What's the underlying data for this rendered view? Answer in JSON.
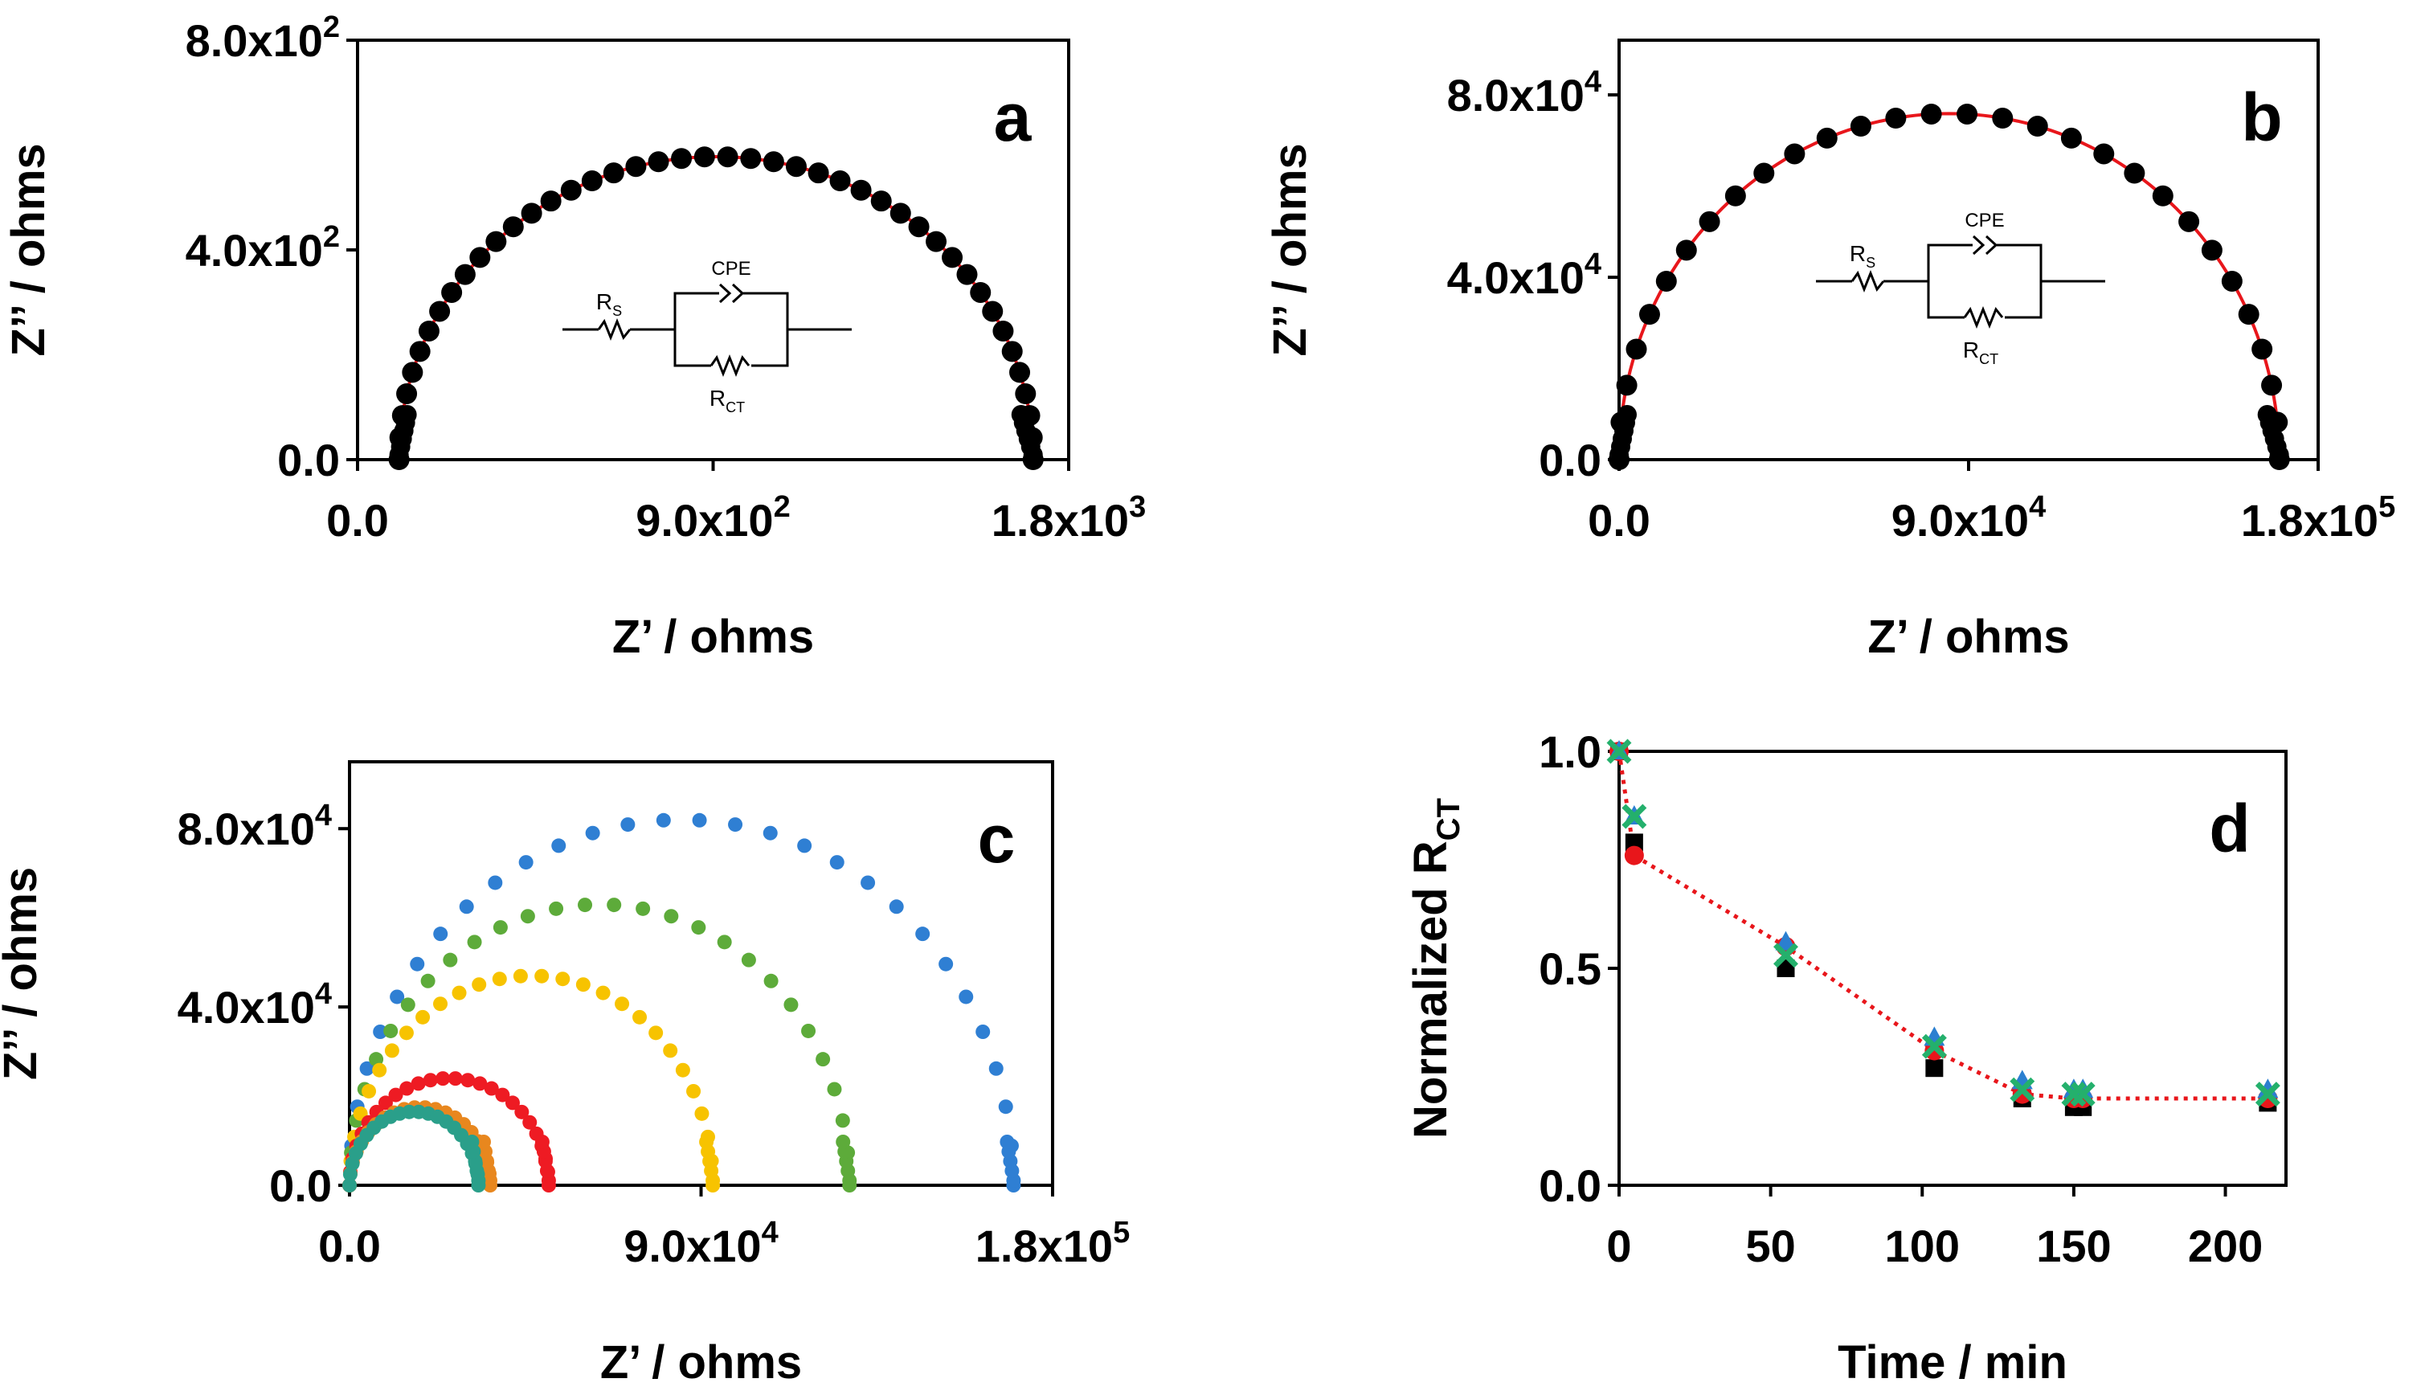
{
  "colors": {
    "fit": "#e8161b",
    "points": "#000000",
    "blue": "#2f7fd3",
    "green": "#5dab3a",
    "yellow": "#f7c300",
    "red": "#ee1b23",
    "orange": "#e8871e",
    "teal": "#2a9f8a",
    "d_black": "#000000",
    "d_red": "#e8161b",
    "d_blue": "#2b7fd0",
    "d_green": "#24b06c"
  },
  "chart_data": [
    {
      "id": "a",
      "type": "scatter",
      "panel_label": "a",
      "xlabel": "Z’ / ohms",
      "ylabel": "Z’’ / ohms",
      "xlim": [
        0,
        1800
      ],
      "ylim": [
        0,
        800
      ],
      "xticks": [
        0,
        900,
        1800
      ],
      "yticks": [
        0,
        400,
        800
      ],
      "xtick_labels": [
        {
          "mant": "0.0",
          "exp": ""
        },
        {
          "mant": "9.0x10",
          "exp": "2"
        },
        {
          "mant": "1.8x10",
          "exp": "3"
        }
      ],
      "ytick_labels": [
        {
          "mant": "0.0",
          "exp": ""
        },
        {
          "mant": "4.0x10",
          "exp": "2"
        },
        {
          "mant": "8.0x10",
          "exp": "2"
        }
      ],
      "fit_arc": {
        "x_start": 105,
        "x_end": 1710,
        "depress": 0.72
      },
      "points_count": 44,
      "circuit": {
        "rs": "R",
        "rs_sub": "S",
        "cpe": "CPE",
        "rct": "R",
        "rct_sub": "CT"
      }
    },
    {
      "id": "b",
      "type": "scatter",
      "panel_label": "b",
      "xlabel": "Z’ / ohms",
      "ylabel": "Z’’ / ohms",
      "xlim": [
        0,
        180000
      ],
      "ylim": [
        0,
        92000
      ],
      "xticks": [
        0,
        90000,
        180000
      ],
      "yticks": [
        0,
        40000,
        80000
      ],
      "xtick_labels": [
        {
          "mant": "0.0",
          "exp": ""
        },
        {
          "mant": "9.0x10",
          "exp": "4"
        },
        {
          "mant": "1.8x10",
          "exp": "5"
        }
      ],
      "ytick_labels": [
        {
          "mant": "0.0",
          "exp": ""
        },
        {
          "mant": "4.0x10",
          "exp": "4"
        },
        {
          "mant": "8.0x10",
          "exp": "4"
        }
      ],
      "fit_arc": {
        "x_start": 0,
        "x_end": 170000,
        "depress": 0.95
      },
      "points_count": 30,
      "circuit": {
        "rs": "R",
        "rs_sub": "S",
        "cpe": "CPE",
        "rct": "R",
        "rct_sub": "CT"
      }
    },
    {
      "id": "c",
      "type": "scatter",
      "panel_label": "c",
      "xlabel": "Z’ / ohms",
      "ylabel": "Z’’ / ohms",
      "xlim": [
        0,
        180000
      ],
      "ylim": [
        0,
        95000
      ],
      "xticks": [
        0,
        90000,
        180000
      ],
      "yticks": [
        0,
        40000,
        80000
      ],
      "xtick_labels": [
        {
          "mant": "0.0",
          "exp": ""
        },
        {
          "mant": "9.0x10",
          "exp": "4"
        },
        {
          "mant": "1.8x10",
          "exp": "5"
        }
      ],
      "ytick_labels": [
        {
          "mant": "0.0",
          "exp": ""
        },
        {
          "mant": "4.0x10",
          "exp": "4"
        },
        {
          "mant": "8.0x10",
          "exp": "4"
        }
      ],
      "series": [
        {
          "color_key": "blue",
          "x_end": 170000,
          "peak": 82000,
          "count": 30
        },
        {
          "color_key": "green",
          "x_end": 128000,
          "peak": 63000,
          "count": 28
        },
        {
          "color_key": "yellow",
          "x_end": 93000,
          "peak": 47000,
          "count": 28
        },
        {
          "color_key": "red",
          "x_end": 51000,
          "peak": 24000,
          "count": 26
        },
        {
          "color_key": "orange",
          "x_end": 36000,
          "peak": 17500,
          "count": 22
        },
        {
          "color_key": "teal",
          "x_end": 33000,
          "peak": 16500,
          "count": 22
        }
      ]
    },
    {
      "id": "d",
      "type": "scatter",
      "panel_label": "d",
      "xlabel": "Time / min",
      "ylabel": "Normalized R",
      "ylabel_sub": "CT",
      "xlim": [
        0,
        220
      ],
      "ylim": [
        0,
        1.0
      ],
      "xticks": [
        0,
        50,
        100,
        150,
        200
      ],
      "yticks": [
        0.0,
        0.5,
        1.0
      ],
      "xtick_labels": [
        "0",
        "50",
        "100",
        "150",
        "200"
      ],
      "ytick_labels": [
        "0.0",
        "0.5",
        "1.0"
      ],
      "trend": {
        "x": [
          0,
          5,
          55,
          104,
          133,
          150,
          153,
          214
        ],
        "y": [
          1.0,
          0.76,
          0.55,
          0.31,
          0.21,
          0.2,
          0.2,
          0.2
        ]
      },
      "series": [
        {
          "color_key": "d_black",
          "marker": "square",
          "x": [
            0,
            5,
            55,
            104,
            133,
            150,
            153,
            214
          ],
          "y": [
            1.0,
            0.79,
            0.5,
            0.27,
            0.2,
            0.18,
            0.18,
            0.19
          ]
        },
        {
          "color_key": "d_red",
          "marker": "circle",
          "x": [
            0,
            5,
            55,
            104,
            133,
            150,
            153,
            214
          ],
          "y": [
            1.0,
            0.76,
            0.55,
            0.31,
            0.21,
            0.2,
            0.2,
            0.2
          ]
        },
        {
          "color_key": "d_blue",
          "marker": "triangle",
          "x": [
            0,
            5,
            55,
            104,
            133,
            150,
            153,
            214
          ],
          "y": [
            1.0,
            0.85,
            0.56,
            0.34,
            0.24,
            0.22,
            0.22,
            0.22
          ]
        },
        {
          "color_key": "d_green",
          "marker": "cross",
          "x": [
            0,
            5,
            55,
            104,
            133,
            150,
            153,
            214
          ],
          "y": [
            1.0,
            0.85,
            0.53,
            0.32,
            0.22,
            0.21,
            0.21,
            0.21
          ]
        }
      ]
    }
  ]
}
